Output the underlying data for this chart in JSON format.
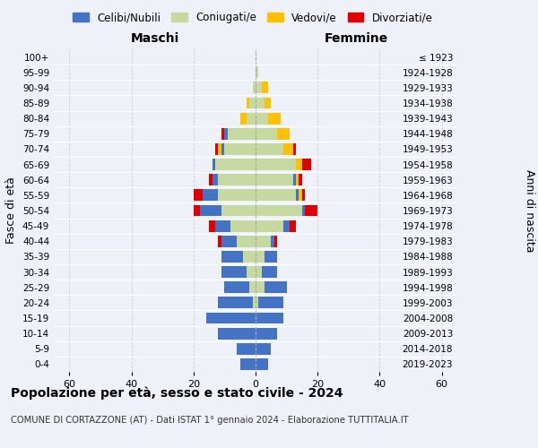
{
  "age_groups": [
    "0-4",
    "5-9",
    "10-14",
    "15-19",
    "20-24",
    "25-29",
    "30-34",
    "35-39",
    "40-44",
    "45-49",
    "50-54",
    "55-59",
    "60-64",
    "65-69",
    "70-74",
    "75-79",
    "80-84",
    "85-89",
    "90-94",
    "95-99",
    "100+"
  ],
  "birth_years": [
    "2019-2023",
    "2014-2018",
    "2009-2013",
    "2004-2008",
    "1999-2003",
    "1994-1998",
    "1989-1993",
    "1984-1988",
    "1979-1983",
    "1974-1978",
    "1969-1973",
    "1964-1968",
    "1959-1963",
    "1954-1958",
    "1949-1953",
    "1944-1948",
    "1939-1943",
    "1934-1938",
    "1929-1933",
    "1924-1928",
    "≤ 1923"
  ],
  "males": {
    "celibe": [
      5,
      6,
      12,
      16,
      11,
      8,
      8,
      7,
      5,
      5,
      7,
      5,
      2,
      1,
      1,
      1,
      0,
      0,
      0,
      0,
      0
    ],
    "coniugato": [
      0,
      0,
      0,
      0,
      1,
      2,
      3,
      4,
      6,
      8,
      11,
      12,
      12,
      13,
      10,
      9,
      3,
      2,
      1,
      0,
      0
    ],
    "vedovo": [
      0,
      0,
      0,
      0,
      0,
      0,
      0,
      0,
      0,
      0,
      0,
      0,
      0,
      0,
      1,
      0,
      2,
      1,
      0,
      0,
      0
    ],
    "divorziato": [
      0,
      0,
      0,
      0,
      0,
      0,
      0,
      0,
      1,
      2,
      2,
      3,
      1,
      0,
      1,
      1,
      0,
      0,
      0,
      0,
      0
    ]
  },
  "females": {
    "nubile": [
      4,
      5,
      7,
      9,
      8,
      7,
      5,
      4,
      1,
      2,
      1,
      1,
      1,
      0,
      0,
      0,
      0,
      0,
      0,
      0,
      0
    ],
    "coniugata": [
      0,
      0,
      0,
      0,
      1,
      3,
      2,
      3,
      5,
      9,
      15,
      13,
      12,
      13,
      9,
      7,
      4,
      3,
      2,
      1,
      0
    ],
    "vedova": [
      0,
      0,
      0,
      0,
      0,
      0,
      0,
      0,
      0,
      0,
      0,
      1,
      1,
      2,
      3,
      4,
      4,
      2,
      2,
      0,
      0
    ],
    "divorziata": [
      0,
      0,
      0,
      0,
      0,
      0,
      0,
      0,
      1,
      2,
      4,
      1,
      1,
      3,
      1,
      0,
      0,
      0,
      0,
      0,
      0
    ]
  },
  "colors": {
    "celibe": "#4472c4",
    "coniugato": "#c5d9a0",
    "vedovo": "#ffc000",
    "divorziato": "#e00000"
  },
  "xlim": 65,
  "title": "Popolazione per età, sesso e stato civile - 2024",
  "subtitle": "COMUNE DI CORTAZZONE (AT) - Dati ISTAT 1° gennaio 2024 - Elaborazione TUTTITALIA.IT",
  "xlabel_left": "Maschi",
  "xlabel_right": "Femmine",
  "ylabel_left": "Fasce di età",
  "ylabel_right": "Anni di nascita",
  "legend_labels": [
    "Celibi/Nubili",
    "Coniugati/e",
    "Vedovi/e",
    "Divorziati/e"
  ],
  "background_color": "#eef2f8"
}
